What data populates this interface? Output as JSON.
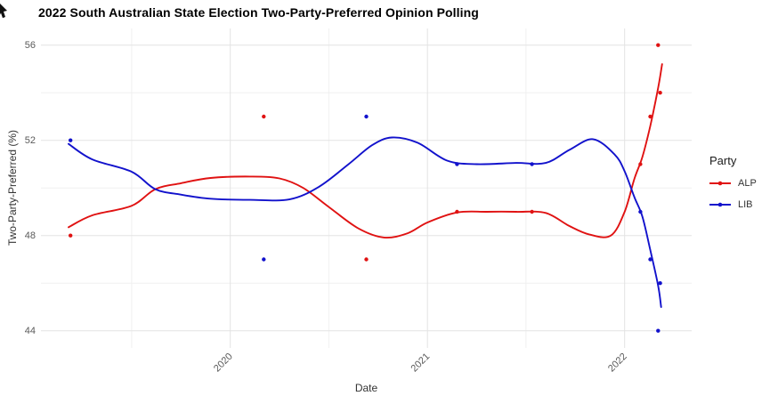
{
  "page": {
    "background": "#ffffff"
  },
  "chart_data": {
    "type": "line",
    "title": "2022 South Australian State Election Two-Party-Preferred Opinion Polling",
    "xlabel": "Date",
    "ylabel": "Two-Party-Preferred (%)",
    "x_tick_values": [
      2020,
      2021,
      2022
    ],
    "x_tick_labels": [
      "2020",
      "2021",
      "2022"
    ],
    "x_minor_ticks": [
      2019.5,
      2020.5,
      2021.5
    ],
    "y_ticks": [
      44,
      48,
      52,
      56
    ],
    "y_tick_labels": [
      "44",
      "48",
      "52",
      "56"
    ],
    "y_minor_ticks": [
      46,
      50,
      54
    ],
    "xlim": [
      2019.04,
      2022.34
    ],
    "ylim": [
      43.28,
      56.7
    ],
    "grid": "major and minor horizontal+vertical, light gray on white",
    "legend": {
      "title": "Party",
      "position": "right",
      "entries": [
        {
          "label": "ALP",
          "color": "#e01212"
        },
        {
          "label": "LIB",
          "color": "#1212cc"
        }
      ]
    },
    "colors": {
      "alp_red": "#e01212",
      "lib_blue": "#1212cc",
      "grid_major": "#e3e3e3",
      "grid_minor": "#f0f0f0",
      "axis_text": "#5a5a5a",
      "axis_title": "#333333"
    },
    "series": [
      {
        "name": "ALP",
        "color": "#e01212",
        "points": [
          [
            2019.19,
            48
          ],
          [
            2020.17,
            53
          ],
          [
            2020.69,
            47
          ],
          [
            2021.15,
            49
          ],
          [
            2021.53,
            49
          ],
          [
            2022.08,
            51
          ],
          [
            2022.13,
            53
          ],
          [
            2022.17,
            56
          ],
          [
            2022.18,
            54
          ]
        ],
        "smooth": [
          [
            2019.18,
            48.35
          ],
          [
            2019.3,
            48.85
          ],
          [
            2019.5,
            49.25
          ],
          [
            2019.62,
            49.95
          ],
          [
            2019.75,
            50.2
          ],
          [
            2019.9,
            50.42
          ],
          [
            2020.1,
            50.48
          ],
          [
            2020.25,
            50.4
          ],
          [
            2020.37,
            50.0
          ],
          [
            2020.5,
            49.2
          ],
          [
            2020.65,
            48.3
          ],
          [
            2020.78,
            47.92
          ],
          [
            2020.9,
            48.1
          ],
          [
            2021.0,
            48.55
          ],
          [
            2021.15,
            48.97
          ],
          [
            2021.3,
            49.0
          ],
          [
            2021.45,
            49.0
          ],
          [
            2021.6,
            48.95
          ],
          [
            2021.72,
            48.4
          ],
          [
            2021.82,
            48.05
          ],
          [
            2021.93,
            48.0
          ],
          [
            2022.0,
            49.0
          ],
          [
            2022.05,
            50.4
          ],
          [
            2022.09,
            51.3
          ],
          [
            2022.13,
            52.6
          ],
          [
            2022.17,
            54.2
          ],
          [
            2022.19,
            55.2
          ]
        ]
      },
      {
        "name": "LIB",
        "color": "#1212cc",
        "points": [
          [
            2019.19,
            52
          ],
          [
            2020.17,
            47
          ],
          [
            2020.69,
            53
          ],
          [
            2021.15,
            51
          ],
          [
            2021.53,
            51
          ],
          [
            2022.08,
            49
          ],
          [
            2022.13,
            47
          ],
          [
            2022.17,
            44
          ],
          [
            2022.18,
            46
          ]
        ],
        "smooth": [
          [
            2019.18,
            51.85
          ],
          [
            2019.3,
            51.2
          ],
          [
            2019.5,
            50.68
          ],
          [
            2019.62,
            49.95
          ],
          [
            2019.75,
            49.72
          ],
          [
            2019.9,
            49.55
          ],
          [
            2020.1,
            49.5
          ],
          [
            2020.3,
            49.52
          ],
          [
            2020.45,
            50.05
          ],
          [
            2020.6,
            51.0
          ],
          [
            2020.72,
            51.8
          ],
          [
            2020.82,
            52.12
          ],
          [
            2020.95,
            51.9
          ],
          [
            2021.1,
            51.15
          ],
          [
            2021.25,
            51.0
          ],
          [
            2021.45,
            51.05
          ],
          [
            2021.6,
            51.05
          ],
          [
            2021.72,
            51.6
          ],
          [
            2021.84,
            52.05
          ],
          [
            2021.95,
            51.4
          ],
          [
            2022.0,
            50.7
          ],
          [
            2022.05,
            49.6
          ],
          [
            2022.09,
            48.8
          ],
          [
            2022.13,
            47.4
          ],
          [
            2022.17,
            45.9
          ],
          [
            2022.185,
            45.0
          ]
        ]
      }
    ]
  }
}
